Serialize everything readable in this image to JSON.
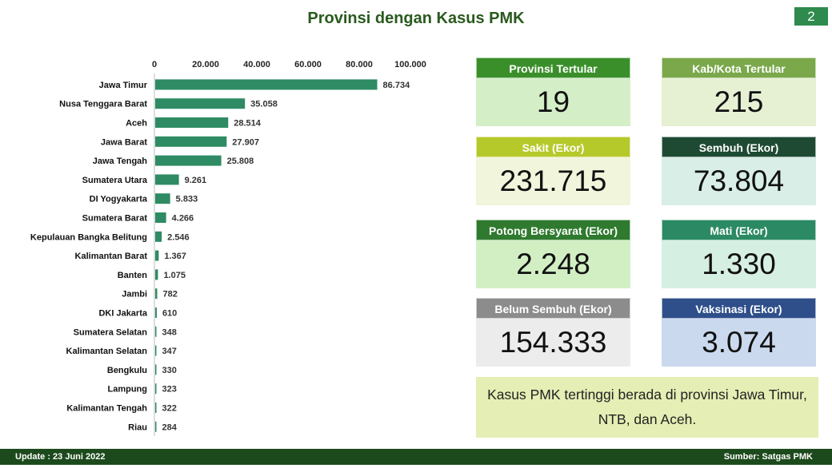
{
  "title": "Provinsi dengan Kasus PMK",
  "page_number": "2",
  "chart_data": {
    "type": "bar",
    "orientation": "horizontal",
    "title": "",
    "xlabel": "",
    "ylabel": "",
    "xlim": [
      0,
      100000
    ],
    "x_ticks": [
      "0",
      "20.000",
      "40.000",
      "60.000",
      "80.000",
      "100.000"
    ],
    "x_tick_values": [
      0,
      20000,
      40000,
      60000,
      80000,
      100000
    ],
    "axis_position": "top",
    "grid": false,
    "bar_color": "#2e8b63",
    "categories": [
      "Jawa Timur",
      "Nusa Tenggara Barat",
      "Aceh",
      "Jawa Barat",
      "Jawa Tengah",
      "Sumatera Utara",
      "DI Yogyakarta",
      "Sumatera Barat",
      "Kepulauan Bangka Belitung",
      "Kalimantan Barat",
      "Banten",
      "Jambi",
      "DKI Jakarta",
      "Sumatera Selatan",
      "Kalimantan Selatan",
      "Bengkulu",
      "Lampung",
      "Kalimantan Tengah",
      "Riau"
    ],
    "values": [
      86734,
      35058,
      28514,
      27907,
      25808,
      9261,
      5833,
      4266,
      2546,
      1367,
      1075,
      782,
      610,
      348,
      347,
      330,
      323,
      322,
      284
    ],
    "value_labels": [
      "86.734",
      "35.058",
      "28.514",
      "27.907",
      "25.808",
      "9.261",
      "5.833",
      "4.266",
      "2.546",
      "1.367",
      "1.075",
      "782",
      "610",
      "348",
      "347",
      "330",
      "323",
      "322",
      "284"
    ]
  },
  "stats": [
    {
      "label": "Provinsi Tertular",
      "value": "19",
      "header_color": "#3a8f2a",
      "value_bg": "#d4efc8"
    },
    {
      "label": "Kab/Kota Tertular",
      "value": "215",
      "header_color": "#7aa84a",
      "value_bg": "#e6f0d3"
    },
    {
      "label": "Sakit (Ekor)",
      "value": "231.715",
      "header_color": "#b6c92a",
      "value_bg": "#f1f5dc"
    },
    {
      "label": "Sembuh (Ekor)",
      "value": "73.804",
      "header_color": "#1e4a34",
      "value_bg": "#d8eee6"
    },
    {
      "label": "Potong Bersyarat (Ekor)",
      "value": "2.248",
      "header_color": "#2f7a2e",
      "value_bg": "#d2efc4"
    },
    {
      "label": "Mati (Ekor)",
      "value": "1.330",
      "header_color": "#2b8a63",
      "value_bg": "#d6efe3"
    },
    {
      "label": "Belum Sembuh (Ekor)",
      "value": "154.333",
      "header_color": "#8c8c8c",
      "value_bg": "#ececec"
    },
    {
      "label": "Vaksinasi (Ekor)",
      "value": "3.074",
      "header_color": "#2e4f8a",
      "value_bg": "#cbd9ee"
    }
  ],
  "summary": "Kasus PMK tertinggi berada di provinsi Jawa Timur, NTB, dan Aceh.",
  "footer": {
    "update": "Update : 23 Juni 2022",
    "source": "Sumber: Satgas PMK"
  }
}
